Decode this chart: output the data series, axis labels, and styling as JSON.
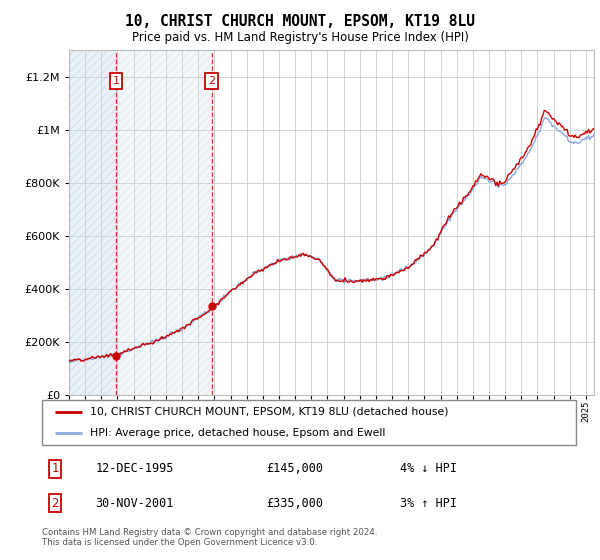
{
  "title": "10, CHRIST CHURCH MOUNT, EPSOM, KT19 8LU",
  "subtitle": "Price paid vs. HM Land Registry's House Price Index (HPI)",
  "legend_line1": "10, CHRIST CHURCH MOUNT, EPSOM, KT19 8LU (detached house)",
  "legend_line2": "HPI: Average price, detached house, Epsom and Ewell",
  "footnote": "Contains HM Land Registry data © Crown copyright and database right 2024.\nThis data is licensed under the Open Government Licence v3.0.",
  "transaction1_date": "12-DEC-1995",
  "transaction1_price": "£145,000",
  "transaction1_hpi": "4% ↓ HPI",
  "transaction2_date": "30-NOV-2001",
  "transaction2_price": "£335,000",
  "transaction2_hpi": "3% ↑ HPI",
  "hatch_color": "#c8d8ea",
  "line_color_price": "#cc0000",
  "line_color_hpi": "#88aadd",
  "dot_color": "#cc0000",
  "ylim": [
    0,
    1300000
  ],
  "yticks": [
    0,
    200000,
    400000,
    600000,
    800000,
    1000000,
    1200000
  ],
  "xlim_start": 1993.0,
  "xlim_end": 2025.5,
  "t1_year": 1995.917,
  "t2_year": 2001.833,
  "t1_price": 145000,
  "t2_price": 335000
}
